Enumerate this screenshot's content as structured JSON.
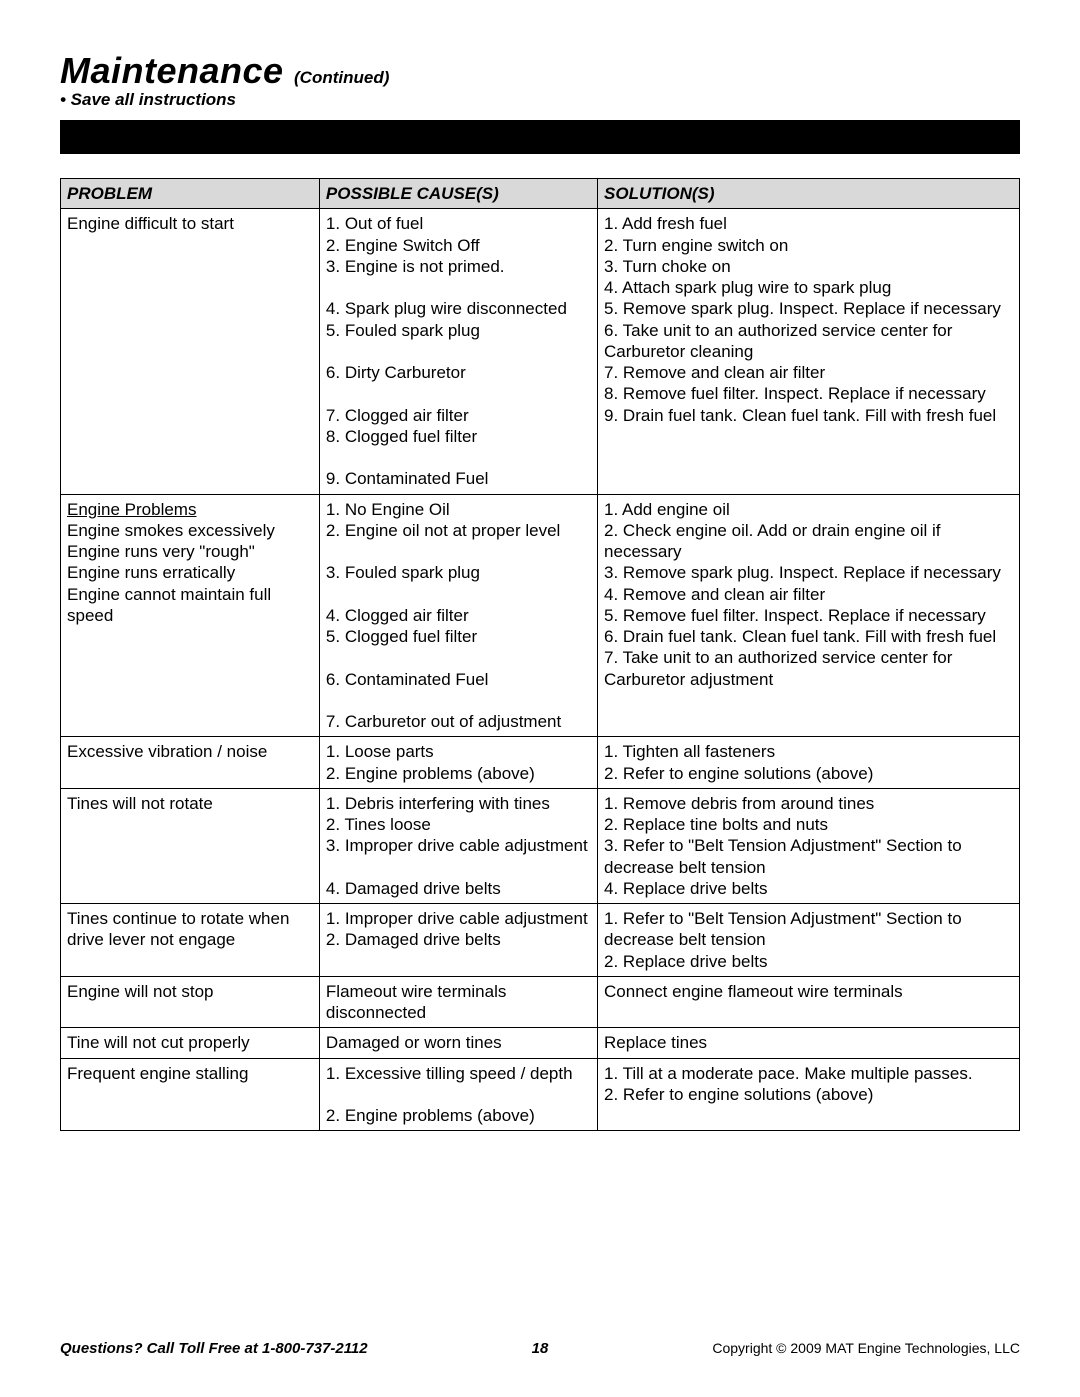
{
  "title_main": "Maintenance",
  "title_cont": "(Continued)",
  "subtitle": "• Save all instructions",
  "columns": [
    "PROBLEM",
    "POSSIBLE CAUSE(S)",
    "SOLUTION(S)"
  ],
  "rows": [
    {
      "problem": "Engine difficult to start",
      "problem_underline": false,
      "cause": "1. Out of fuel\n2. Engine Switch Off\n3. Engine is not primed.\n\n4. Spark plug wire disconnected\n5. Fouled spark plug\n\n6. Dirty Carburetor\n\n7. Clogged air filter\n8. Clogged fuel filter\n\n9. Contaminated Fuel",
      "solution": "1. Add fresh fuel\n2. Turn engine switch on\n3. Turn choke on\n4. Attach spark plug wire to spark plug\n5. Remove spark plug.  Inspect.  Replace if necessary\n6. Take unit to an authorized service center for Carburetor cleaning\n7. Remove and clean air filter\n8. Remove fuel filter.  Inspect.  Replace if necessary\n9. Drain fuel tank.  Clean fuel tank. Fill with fresh fuel"
    },
    {
      "problem_html": "<span class=\"underline\">Engine Problems</span>\nEngine smokes excessively\nEngine runs very \"rough\"\nEngine runs erratically\nEngine cannot maintain full speed",
      "cause": "1. No Engine Oil\n2. Engine oil not at proper level\n\n3. Fouled spark plug\n\n4. Clogged air filter\n5. Clogged fuel filter\n\n6. Contaminated Fuel\n\n7. Carburetor out of adjustment",
      "solution": "1. Add engine oil\n2. Check engine oil.  Add or drain engine oil if necessary\n3. Remove spark plug.  Inspect.  Replace if necessary\n4. Remove and clean air filter\n5. Remove fuel filter.  Inspect.  Replace if necessary\n6. Drain fuel tank.  Clean fuel tank. Fill with fresh fuel\n7. Take unit to an authorized service center for Carburetor adjustment"
    },
    {
      "problem": "Excessive vibration / noise",
      "cause": "1. Loose parts\n2. Engine problems (above)\n ",
      "solution": "1. Tighten all fasteners\n2. Refer to engine solutions (above)"
    },
    {
      "problem": "Tines will not rotate",
      "cause": "1. Debris interfering with tines\n2. Tines loose\n3. Improper drive cable adjustment\n\n4. Damaged drive belts",
      "solution": "1. Remove debris from around tines\n2. Replace tine bolts and nuts\n3. Refer to \"Belt Tension Adjustment\" Section to decrease belt tension\n4. Replace drive belts"
    },
    {
      "problem": "Tines continue to rotate when drive lever not engage",
      "cause": "1. Improper drive cable adjustment\n2. Damaged drive belts",
      "solution": "1. Refer to \"Belt Tension Adjustment\" Section to decrease belt tension\n2. Replace drive belts"
    },
    {
      "problem": "Engine will not stop",
      "cause": "Flameout wire terminals disconnected",
      "solution": "Connect engine flameout wire terminals"
    },
    {
      "problem": "Tine will not cut properly",
      "cause": "Damaged or worn tines\n ",
      "solution": "Replace tines"
    },
    {
      "problem": "Frequent engine stalling",
      "cause": "1. Excessive tilling speed / depth\n\n2. Engine problems (above)",
      "solution": "1. Till at a moderate pace.  Make multiple passes.\n2. Refer to engine solutions (above)"
    }
  ],
  "footer_left": "Questions? Call Toll Free at 1-800-737-2112",
  "footer_mid": "18",
  "footer_right": "Copyright © 2009 MAT Engine Technologies, LLC"
}
